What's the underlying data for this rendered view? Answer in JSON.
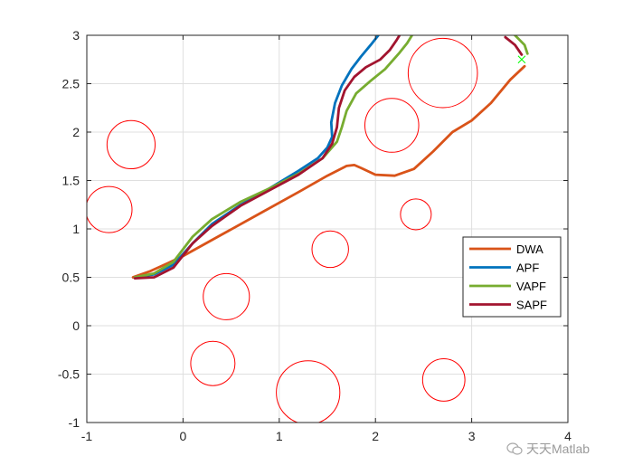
{
  "chart_data": {
    "type": "line",
    "title": "",
    "xlabel": "",
    "ylabel": "",
    "xlim": [
      -1,
      4
    ],
    "ylim": [
      -1,
      3
    ],
    "x_ticks": [
      -1,
      0,
      1,
      2,
      3,
      4
    ],
    "y_ticks": [
      -1,
      -0.5,
      0,
      0.5,
      1,
      1.5,
      2,
      2.5,
      3
    ],
    "x_tick_labels": [
      "-1",
      "0",
      "1",
      "2",
      "3",
      "4"
    ],
    "y_tick_labels": [
      "-1",
      "-0.5",
      "0",
      "0.5",
      "1",
      "1.5",
      "2",
      "2.5",
      "3"
    ],
    "grid": true,
    "legend_position": "right-middle",
    "obstacles": [
      {
        "cx": -0.54,
        "cy": 1.87,
        "r": 0.25
      },
      {
        "cx": -0.77,
        "cy": 1.2,
        "r": 0.24
      },
      {
        "cx": 0.45,
        "cy": 0.3,
        "r": 0.24
      },
      {
        "cx": 0.31,
        "cy": -0.39,
        "r": 0.23
      },
      {
        "cx": 1.3,
        "cy": -0.69,
        "r": 0.33
      },
      {
        "cx": 1.53,
        "cy": 0.79,
        "r": 0.19
      },
      {
        "cx": 2.17,
        "cy": 2.07,
        "r": 0.28
      },
      {
        "cx": 2.42,
        "cy": 1.15,
        "r": 0.16
      },
      {
        "cx": 2.7,
        "cy": 2.61,
        "r": 0.36
      },
      {
        "cx": 2.71,
        "cy": -0.56,
        "r": 0.22
      }
    ],
    "goal": {
      "x": 3.52,
      "y": 2.75
    },
    "series": [
      {
        "name": "DWA",
        "color": "#D95319",
        "x": [
          -0.52,
          -0.35,
          -0.15,
          0.0,
          0.4,
          0.8,
          1.2,
          1.5,
          1.7,
          1.78,
          1.85,
          2.0,
          2.2,
          2.4,
          2.6,
          2.8,
          3.0,
          3.2,
          3.4,
          3.55
        ],
        "y": [
          0.5,
          0.56,
          0.65,
          0.72,
          0.94,
          1.16,
          1.38,
          1.55,
          1.65,
          1.66,
          1.63,
          1.56,
          1.55,
          1.62,
          1.8,
          2.0,
          2.12,
          2.3,
          2.54,
          2.68
        ]
      },
      {
        "name": "APF",
        "color": "#0072BD",
        "x": [
          -0.5,
          -0.3,
          -0.1,
          0.1,
          0.3,
          0.6,
          0.9,
          1.2,
          1.4,
          1.5,
          1.55,
          1.54,
          1.58,
          1.65,
          1.75,
          1.85,
          1.95,
          2.03
        ],
        "y": [
          0.5,
          0.53,
          0.63,
          0.85,
          1.05,
          1.25,
          1.42,
          1.6,
          1.73,
          1.84,
          1.95,
          2.1,
          2.3,
          2.48,
          2.65,
          2.78,
          2.9,
          3.0
        ]
      },
      {
        "name": "VAPF",
        "color": "#77AC30",
        "x": [
          -0.5,
          -0.3,
          -0.1,
          0.1,
          0.3,
          0.6,
          0.9,
          1.2,
          1.45,
          1.6,
          1.65,
          1.7,
          1.8,
          1.95,
          2.1,
          2.25,
          2.33,
          2.38,
          "",
          3.45,
          3.55,
          3.58
        ],
        "y": [
          0.5,
          0.54,
          0.66,
          0.92,
          1.1,
          1.28,
          1.42,
          1.57,
          1.73,
          1.9,
          2.05,
          2.22,
          2.4,
          2.53,
          2.65,
          2.82,
          2.92,
          3.0,
          "",
          3.0,
          2.9,
          2.81
        ]
      },
      {
        "name": "SAPF",
        "color": "#A2142F",
        "x": [
          -0.5,
          -0.3,
          -0.1,
          0.1,
          0.3,
          0.6,
          0.9,
          1.2,
          1.45,
          1.55,
          1.6,
          1.62,
          1.68,
          1.78,
          1.9,
          2.05,
          2.15,
          2.22,
          2.25,
          "",
          3.35,
          3.45,
          3.52
        ],
        "y": [
          0.49,
          0.5,
          0.6,
          0.85,
          1.03,
          1.24,
          1.4,
          1.56,
          1.73,
          1.88,
          2.05,
          2.25,
          2.43,
          2.57,
          2.67,
          2.75,
          2.85,
          2.95,
          3.0,
          "",
          2.98,
          2.9,
          2.8
        ]
      }
    ]
  },
  "legend": {
    "items": [
      "DWA",
      "APF",
      "VAPF",
      "SAPF"
    ]
  },
  "watermark": {
    "text": "天天Matlab"
  }
}
